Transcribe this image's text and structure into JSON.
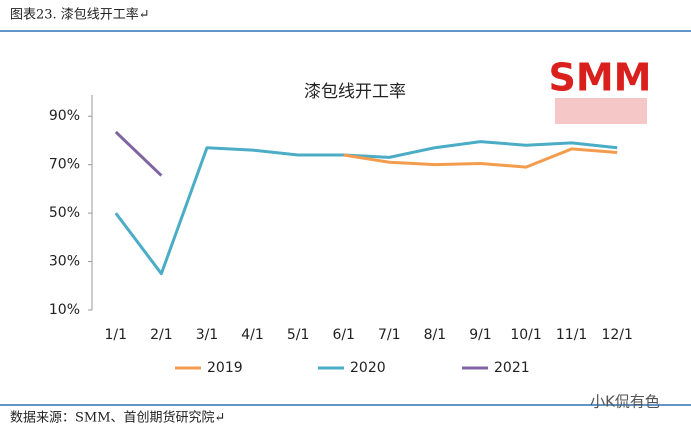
{
  "header": {
    "title": "图表23.   漆包线开工率↵"
  },
  "logo": "SMM",
  "chart_data": {
    "type": "line",
    "title": "漆包线开工率",
    "categories": [
      "1/1",
      "2/1",
      "3/1",
      "4/1",
      "5/1",
      "6/1",
      "7/1",
      "8/1",
      "9/1",
      "10/1",
      "11/1",
      "12/1"
    ],
    "series": [
      {
        "name": "2019",
        "color": "#f39c4e",
        "values": [
          null,
          null,
          null,
          null,
          null,
          74,
          71,
          70,
          70.5,
          69,
          76.5,
          75
        ]
      },
      {
        "name": "2020",
        "color": "#4bacc6",
        "values": [
          50,
          25,
          77,
          76,
          74,
          74,
          73,
          77,
          79.5,
          78,
          79,
          77
        ]
      },
      {
        "name": "2021",
        "color": "#8064a2",
        "values": [
          83.5,
          65.5,
          null,
          null,
          null,
          null,
          null,
          null,
          null,
          null,
          null,
          null
        ]
      }
    ],
    "ylim": [
      10,
      100
    ],
    "yticks": [
      {
        "value": 10,
        "label": "10%"
      },
      {
        "value": 30,
        "label": "30%"
      },
      {
        "value": 50,
        "label": "50%"
      },
      {
        "value": 70,
        "label": "70%"
      },
      {
        "value": 90,
        "label": "90%"
      }
    ],
    "grid": false,
    "legend": "bottom"
  },
  "footer": {
    "source": "数据来源：SMM、首创期货研究院↵",
    "watermark": "小K侃有色"
  }
}
